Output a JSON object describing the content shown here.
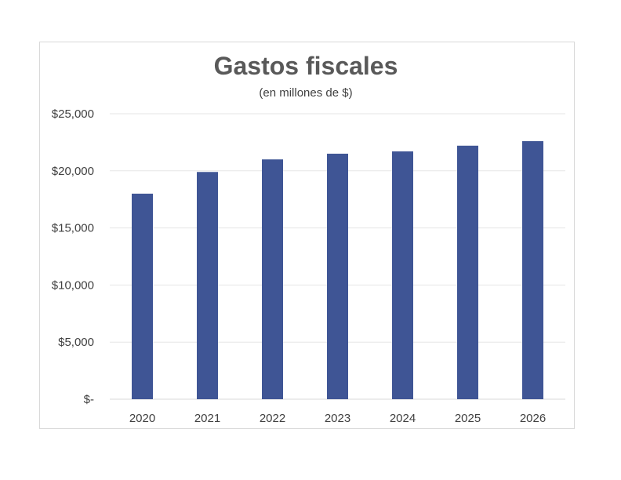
{
  "chart_data": {
    "type": "bar",
    "title": "Gastos fiscales",
    "subtitle": "(en millones de $)",
    "categories": [
      "2020",
      "2021",
      "2022",
      "2023",
      "2024",
      "2025",
      "2026"
    ],
    "values": [
      18000,
      19900,
      21000,
      21500,
      21700,
      22200,
      22600
    ],
    "ylim": [
      0,
      25000
    ],
    "yticks": [
      0,
      5000,
      10000,
      15000,
      20000,
      25000
    ],
    "ytick_labels": [
      "$-",
      "$5,000",
      "$10,000",
      "$15,000",
      "$20,000",
      "$25,000"
    ],
    "bar_color": "#3f5595",
    "grid": true,
    "legend": "none"
  }
}
